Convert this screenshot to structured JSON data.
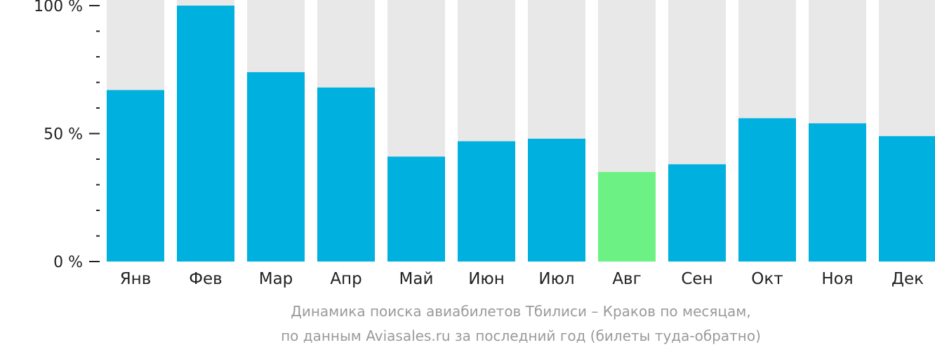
{
  "chart_data": {
    "type": "bar",
    "categories": [
      "Янв",
      "Фев",
      "Мар",
      "Апр",
      "Май",
      "Июн",
      "Июл",
      "Авг",
      "Сен",
      "Окт",
      "Ноя",
      "Дек"
    ],
    "values": [
      67,
      100,
      74,
      68,
      41,
      47,
      48,
      35,
      38,
      56,
      54,
      49
    ],
    "highlight_index": 7,
    "ylim": [
      0,
      100
    ],
    "yticks": [
      {
        "value": 0,
        "label": "0 %"
      },
      {
        "value": 50,
        "label": "50 %"
      },
      {
        "value": 100,
        "label": "100 %"
      }
    ],
    "minor_tick_step": 10,
    "colors": {
      "bar": "#00b0de",
      "highlight": "#6cf284",
      "track": "#e8e8e8",
      "axis": "#222222"
    }
  },
  "caption": {
    "line1": "Динамика поиска авиабилетов Тбилиси – Краков по месяцам,",
    "line2": "по данным Aviasales.ru за последний год (билеты туда-обратно)"
  }
}
